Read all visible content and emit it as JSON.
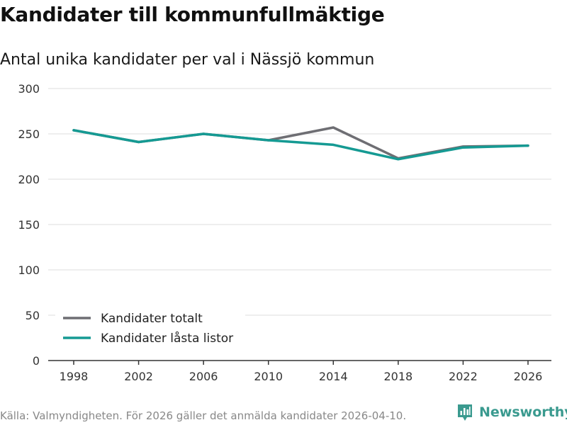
{
  "header": {
    "title": "Kandidater till kommunfullmäktige",
    "subtitle": "Antal unika kandidater per val i Nässjö kommun"
  },
  "footer": {
    "source": "Källa: Valmyndigheten. För 2026 gäller det anmälda kandidater 2026-04-10.",
    "brand": "Newsworthy"
  },
  "colors": {
    "total": "#6e6e73",
    "locked": "#159a93",
    "grid": "#dddddd",
    "axis": "#333333",
    "brand": "#3a9a8f"
  },
  "chart_data": {
    "type": "line",
    "title": "Kandidater till kommunfullmäktige",
    "subtitle": "Antal unika kandidater per val i Nässjö kommun",
    "xlabel": "",
    "ylabel": "",
    "categories": [
      "1998",
      "2002",
      "2006",
      "2010",
      "2014",
      "2018",
      "2022",
      "2026"
    ],
    "yticks": [
      0,
      50,
      100,
      150,
      200,
      250,
      300
    ],
    "ylim": [
      0,
      300
    ],
    "grid": true,
    "legend_position": "bottom-left",
    "series": [
      {
        "name": "Kandidater totalt",
        "color": "#6e6e73",
        "values": [
          254,
          241,
          250,
          243,
          257,
          223,
          236,
          237
        ]
      },
      {
        "name": "Kandidater låsta listor",
        "color": "#159a93",
        "values": [
          254,
          241,
          250,
          243,
          238,
          222,
          235,
          237
        ]
      }
    ]
  }
}
